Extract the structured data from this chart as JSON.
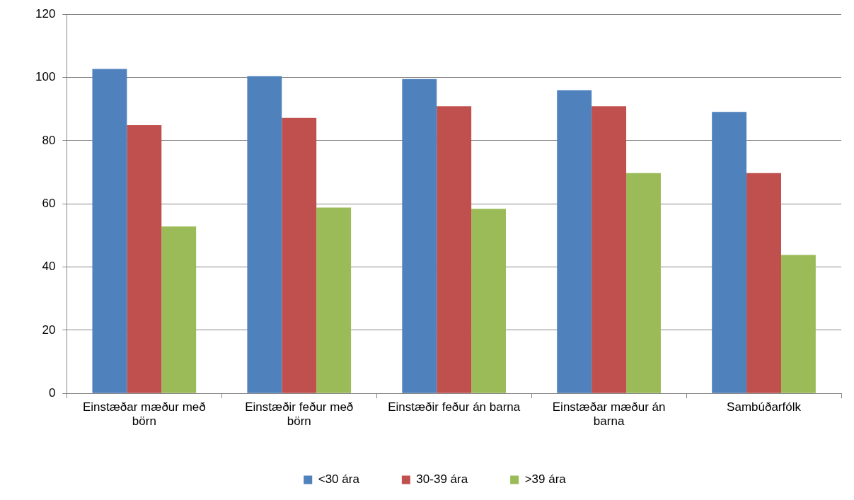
{
  "chart_data": {
    "type": "bar",
    "categories": [
      "Einstæðar mæður með börn",
      "Einstæðir feður með börn",
      "Einstæðir feður án barna",
      "Einstæðar mæður án barna",
      "Sambúðarfólk"
    ],
    "series": [
      {
        "name": "<30 ára",
        "color": "#4f81bd",
        "values": [
          102.7,
          100.4,
          99.5,
          96,
          89.1
        ]
      },
      {
        "name": "30-39 ára",
        "color": "#c0504d",
        "values": [
          84.9,
          87.2,
          90.9,
          90.9,
          69.7
        ]
      },
      {
        "name": ">39 ára",
        "color": "#9bbb59",
        "values": [
          52.8,
          58.8,
          58.4,
          69.7,
          43.8
        ]
      }
    ],
    "ylim": [
      0,
      120
    ],
    "yticks": [
      0,
      20,
      40,
      60,
      80,
      100,
      120
    ],
    "grid": "y",
    "legend": "bottom"
  }
}
